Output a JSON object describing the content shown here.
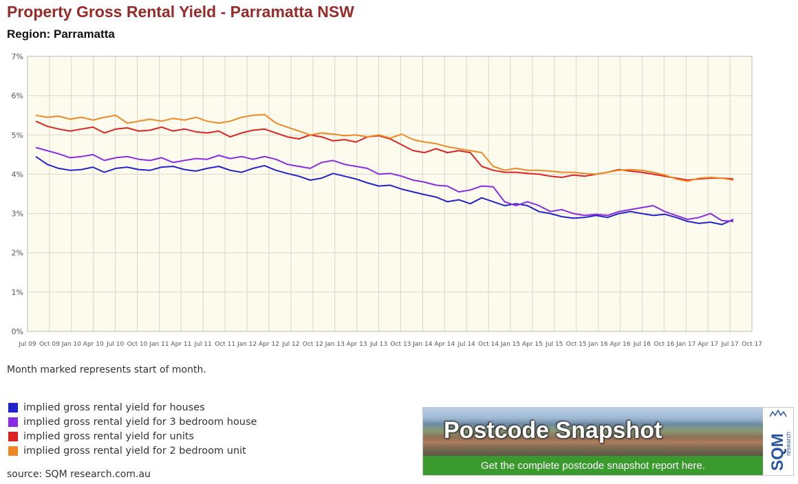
{
  "title": "Property Gross Rental Yield - Parramatta NSW",
  "subtitle": "Region: Parramatta",
  "note": "Month marked represents start of month.",
  "source": "source: SQM research.com.au",
  "banner": {
    "headline": "Postcode Snapshot",
    "cta": "Get the complete postcode snapshot report here.",
    "logo_text": "SQM",
    "logo_small": "research"
  },
  "chart_data": {
    "type": "line",
    "ylim": [
      0,
      7
    ],
    "y_unit": "%",
    "y_ticks": [
      0,
      1,
      2,
      3,
      4,
      5,
      6,
      7
    ],
    "y_tick_labels": [
      "0%",
      "1%",
      "2%",
      "3%",
      "4%",
      "5%",
      "6%",
      "7%"
    ],
    "x_tick_labels": [
      "Jul 09",
      "Oct 09",
      "Jan 10",
      "Apr 10",
      "Jul 10",
      "Oct 10",
      "Jan 11",
      "Apr 11",
      "Jul 11",
      "Oct 11",
      "Jan 12",
      "Apr 12",
      "Jul 12",
      "Oct 12",
      "Jan 13",
      "Apr 13",
      "Jul 13",
      "Oct 13",
      "Jan 14",
      "Apr 14",
      "Jul 14",
      "Oct 14",
      "Jan 15",
      "Apr 15",
      "Jul 15",
      "Oct 15",
      "Jan 16",
      "Apr 16",
      "Jul 16",
      "Oct 16",
      "Jan 17",
      "Apr 17",
      "Jul 17",
      "Oct 17"
    ],
    "grid": true,
    "legend_position": "bottom-left",
    "series": [
      {
        "name": "implied gross rental yield for houses",
        "color": "#2222cc",
        "values": [
          4.45,
          4.25,
          4.15,
          4.1,
          4.12,
          4.18,
          4.05,
          4.15,
          4.18,
          4.12,
          4.1,
          4.18,
          4.2,
          4.12,
          4.08,
          4.15,
          4.2,
          4.1,
          4.05,
          4.15,
          4.22,
          4.1,
          4.02,
          3.95,
          3.85,
          3.9,
          4.02,
          3.95,
          3.88,
          3.78,
          3.7,
          3.72,
          3.62,
          3.55,
          3.48,
          3.42,
          3.3,
          3.35,
          3.25,
          3.4,
          3.3,
          3.2,
          3.25,
          3.2,
          3.05,
          3.0,
          2.92,
          2.88,
          2.9,
          2.95,
          2.9,
          3.0,
          3.05,
          3.0,
          2.95,
          2.98,
          2.9,
          2.8,
          2.75,
          2.78,
          2.72,
          2.85
        ]
      },
      {
        "name": "implied gross rental yield for 3 bedroom house",
        "color": "#8a2be2",
        "values": [
          4.68,
          4.6,
          4.52,
          4.42,
          4.45,
          4.5,
          4.35,
          4.42,
          4.45,
          4.38,
          4.35,
          4.42,
          4.3,
          4.35,
          4.4,
          4.38,
          4.48,
          4.4,
          4.45,
          4.38,
          4.45,
          4.38,
          4.25,
          4.2,
          4.15,
          4.3,
          4.35,
          4.25,
          4.2,
          4.15,
          4.0,
          4.02,
          3.95,
          3.85,
          3.8,
          3.72,
          3.7,
          3.55,
          3.6,
          3.7,
          3.68,
          3.3,
          3.2,
          3.3,
          3.2,
          3.05,
          3.1,
          3.0,
          2.95,
          2.98,
          2.95,
          3.05,
          3.1,
          3.15,
          3.2,
          3.05,
          2.95,
          2.85,
          2.9,
          3.0,
          2.82,
          2.8
        ]
      },
      {
        "name": "implied gross rental yield for units",
        "color": "#dd2222",
        "values": [
          5.35,
          5.22,
          5.15,
          5.1,
          5.15,
          5.2,
          5.05,
          5.15,
          5.18,
          5.1,
          5.12,
          5.2,
          5.1,
          5.15,
          5.08,
          5.05,
          5.1,
          4.95,
          5.05,
          5.12,
          5.15,
          5.05,
          4.95,
          4.9,
          5.0,
          4.95,
          4.85,
          4.88,
          4.82,
          4.95,
          4.98,
          4.9,
          4.75,
          4.6,
          4.55,
          4.65,
          4.55,
          4.6,
          4.55,
          4.2,
          4.1,
          4.05,
          4.05,
          4.02,
          4.0,
          3.95,
          3.92,
          3.98,
          3.95,
          4.0,
          4.05,
          4.12,
          4.08,
          4.05,
          4.0,
          3.95,
          3.9,
          3.85,
          3.88,
          3.9,
          3.9,
          3.88
        ]
      },
      {
        "name": "implied gross rental yield for 2 bedroom unit",
        "color": "#ee8822",
        "values": [
          5.5,
          5.45,
          5.48,
          5.4,
          5.45,
          5.38,
          5.45,
          5.5,
          5.3,
          5.35,
          5.4,
          5.35,
          5.42,
          5.38,
          5.45,
          5.35,
          5.3,
          5.35,
          5.45,
          5.5,
          5.52,
          5.3,
          5.2,
          5.1,
          5.0,
          5.05,
          5.02,
          4.98,
          5.0,
          4.95,
          5.0,
          4.92,
          5.02,
          4.88,
          4.82,
          4.78,
          4.7,
          4.65,
          4.6,
          4.55,
          4.2,
          4.1,
          4.15,
          4.1,
          4.1,
          4.08,
          4.05,
          4.05,
          4.02,
          4.0,
          4.05,
          4.1,
          4.12,
          4.1,
          4.05,
          3.98,
          3.88,
          3.82,
          3.9,
          3.92,
          3.9,
          3.85
        ]
      }
    ]
  }
}
